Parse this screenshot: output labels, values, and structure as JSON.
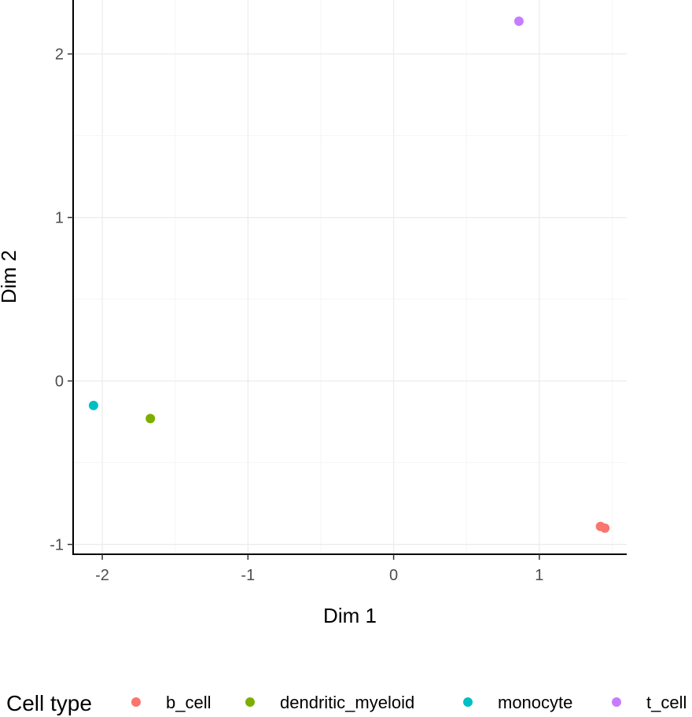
{
  "chart_data": {
    "type": "scatter",
    "title": "",
    "xlabel": "Dim 1",
    "ylabel": "Dim 2",
    "xlim": [
      -2.2,
      1.6
    ],
    "ylim": [
      -1.06,
      2.33
    ],
    "x_ticks": [
      -2,
      -1,
      0,
      1
    ],
    "x_tick_labels": [
      "-2",
      "-1",
      "0",
      "1"
    ],
    "y_ticks": [
      -1,
      0,
      1,
      2
    ],
    "y_tick_labels": [
      "-1",
      "0",
      "1",
      "2"
    ],
    "grid": true,
    "legend_title": "Cell type",
    "legend_position": "bottom",
    "series": [
      {
        "name": "b_cell",
        "color": "#F8766D",
        "points": [
          {
            "x": 1.42,
            "y": -0.89
          },
          {
            "x": 1.45,
            "y": -0.9
          }
        ]
      },
      {
        "name": "dendritic_myeloid",
        "color": "#7CAE00",
        "points": [
          {
            "x": -1.67,
            "y": -0.23
          }
        ]
      },
      {
        "name": "monocyte",
        "color": "#00BFC4",
        "points": [
          {
            "x": -2.06,
            "y": -0.15
          }
        ]
      },
      {
        "name": "t_cell",
        "color": "#C77CFF",
        "points": [
          {
            "x": 0.86,
            "y": 2.2
          }
        ]
      }
    ]
  }
}
